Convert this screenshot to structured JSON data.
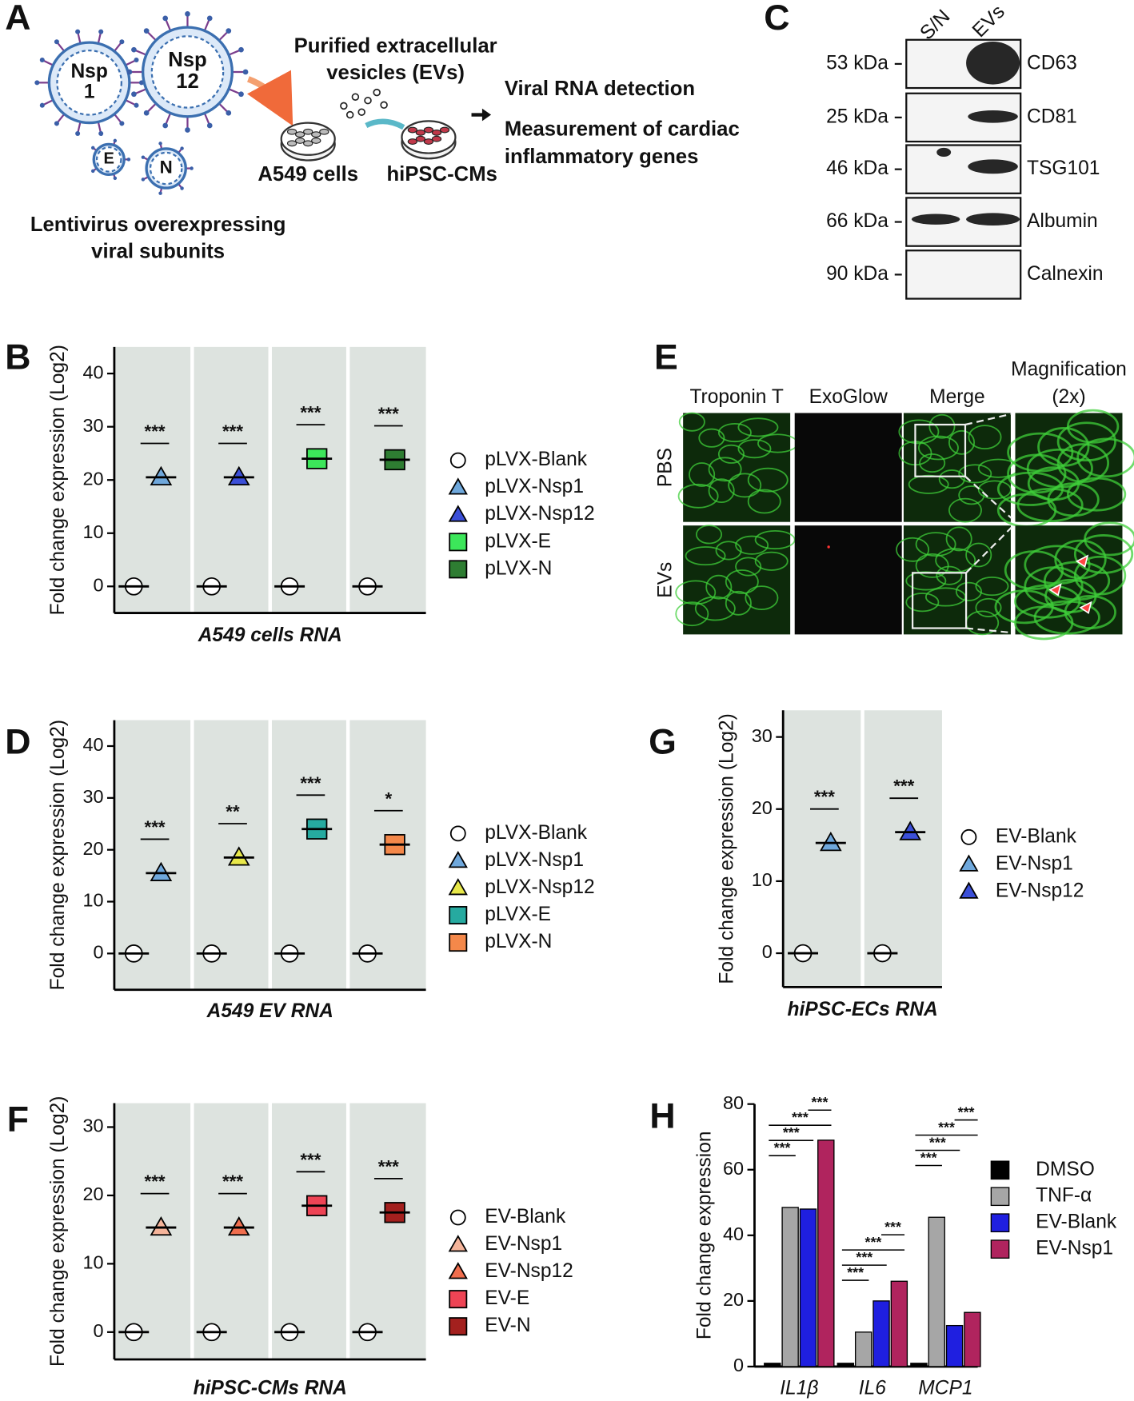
{
  "panel_labels": [
    "A",
    "B",
    "C",
    "D",
    "E",
    "F",
    "G",
    "H"
  ],
  "diagram": {
    "viruses": [
      [
        "Nsp",
        "1"
      ],
      [
        "Nsp",
        "12"
      ],
      [
        "E"
      ],
      [
        "N"
      ]
    ],
    "caption": [
      "Lentivirus overexpressing",
      "viral subunits"
    ],
    "ev_label": [
      "Purified extracellular",
      "vesicles (EVs)"
    ],
    "cells": [
      "A549 cells",
      "hiPSC-CMs"
    ],
    "outcomes": [
      "Viral RNA detection",
      "Measurement of cardiac",
      "inflammatory genes"
    ]
  },
  "blot": {
    "lanes": [
      "S/N",
      "EVs"
    ],
    "sizes": [
      "53 kDa",
      "25 kDa",
      "46 kDa",
      "66 kDa",
      "90 kDa"
    ],
    "proteins": [
      "CD63",
      "CD81",
      "TSG101",
      "Albumin",
      "Calnexin"
    ]
  },
  "micrographs": {
    "columns": [
      [
        "Troponin T"
      ],
      [
        "ExoGlow"
      ],
      [
        "Merge"
      ],
      [
        "Magnification",
        "(2x)"
      ]
    ],
    "rows": [
      "PBS",
      "EVs"
    ]
  },
  "chart_data": [
    {
      "type": "dotplot",
      "x_label": "A549 cells RNA",
      "y_label": "Fold change expression (Log2)",
      "ylim": [
        -5,
        45
      ],
      "yticks": [
        0,
        10,
        20,
        30,
        40
      ],
      "series": [
        {
          "name": "pLVX-Blank",
          "color": "#ffffff",
          "marker": "circle",
          "values": [
            0,
            0,
            0,
            0
          ]
        },
        {
          "name": "pLVX-Nsp1",
          "color": "#6fa8dc",
          "marker": "triangle",
          "values": [
            20.5,
            null,
            null,
            null
          ]
        },
        {
          "name": "pLVX-Nsp12",
          "color": "#3b4fd8",
          "marker": "triangle",
          "values": [
            null,
            20.5,
            null,
            null
          ]
        },
        {
          "name": "pLVX-E",
          "color": "#3ce65a",
          "marker": "square",
          "values": [
            null,
            null,
            24,
            null
          ]
        },
        {
          "name": "pLVX-N",
          "color": "#2e7d32",
          "marker": "square",
          "values": [
            null,
            null,
            null,
            23.8
          ]
        }
      ],
      "annotations": [
        "***",
        "***",
        "***",
        "***"
      ]
    },
    {
      "type": "dotplot",
      "x_label": "A549 EV RNA",
      "y_label": "Fold change expression (Log2)",
      "ylim": [
        -7,
        45
      ],
      "yticks": [
        0,
        10,
        20,
        30,
        40
      ],
      "series": [
        {
          "name": "pLVX-Blank",
          "color": "#ffffff",
          "marker": "circle",
          "values": [
            0,
            0,
            0,
            0
          ]
        },
        {
          "name": "pLVX-Nsp1",
          "color": "#6fa8dc",
          "marker": "triangle",
          "values": [
            15.5,
            null,
            null,
            null
          ]
        },
        {
          "name": "pLVX-Nsp12",
          "color": "#e8e84a",
          "marker": "triangle",
          "values": [
            null,
            18.5,
            null,
            null
          ]
        },
        {
          "name": "pLVX-E",
          "color": "#26aaa0",
          "marker": "square",
          "values": [
            null,
            null,
            24,
            null
          ]
        },
        {
          "name": "pLVX-N",
          "color": "#f4884a",
          "marker": "square",
          "values": [
            null,
            null,
            null,
            21
          ]
        }
      ],
      "annotations": [
        "***",
        "**",
        "***",
        "*"
      ]
    },
    {
      "type": "dotplot",
      "x_label": "hiPSC-CMs RNA",
      "y_label": "Fold change expression (Log2)",
      "ylim": [
        -4,
        33.5
      ],
      "yticks": [
        0,
        10,
        20,
        30
      ],
      "series": [
        {
          "name": "EV-Blank",
          "color": "#ffffff",
          "marker": "circle",
          "values": [
            0,
            0,
            0,
            0
          ]
        },
        {
          "name": "EV-Nsp1",
          "color": "#f5b49a",
          "marker": "triangle",
          "values": [
            15.3,
            null,
            null,
            null
          ]
        },
        {
          "name": "EV-Nsp12",
          "color": "#f06e4e",
          "marker": "triangle",
          "values": [
            null,
            15.3,
            null,
            null
          ]
        },
        {
          "name": "EV-E",
          "color": "#ee4455",
          "marker": "square",
          "values": [
            null,
            null,
            18.5,
            null
          ]
        },
        {
          "name": "EV-N",
          "color": "#a3201e",
          "marker": "square",
          "values": [
            null,
            null,
            null,
            17.5
          ]
        }
      ],
      "annotations": [
        "***",
        "***",
        "***",
        "***"
      ]
    },
    {
      "type": "dotplot",
      "x_label": "hiPSC-ECs RNA",
      "y_label": "Fold change expression (Log2)",
      "ylim": [
        -4.7,
        33.7
      ],
      "yticks": [
        0,
        10,
        20,
        30
      ],
      "series": [
        {
          "name": "EV-Blank",
          "color": "#ffffff",
          "marker": "circle",
          "values": [
            0,
            0
          ]
        },
        {
          "name": "EV-Nsp1",
          "color": "#6fa8dc",
          "marker": "triangle",
          "values": [
            15.3,
            null
          ]
        },
        {
          "name": "EV-Nsp12",
          "color": "#3b4fd8",
          "marker": "triangle",
          "values": [
            null,
            16.8
          ]
        }
      ],
      "annotations": [
        "***",
        "***"
      ]
    },
    {
      "type": "bar",
      "y_label": "Fold change expression",
      "categories": [
        "IL1β",
        "IL6",
        "MCP1"
      ],
      "ylim": [
        0,
        80
      ],
      "yticks": [
        0,
        20,
        40,
        60,
        80
      ],
      "series": [
        {
          "name": "DMSO",
          "color": "#000000",
          "values": [
            1,
            1,
            1
          ]
        },
        {
          "name": "TNF-α",
          "color": "#a6a6a6",
          "values": [
            48.5,
            10.5,
            45.5
          ]
        },
        {
          "name": "EV-Blank",
          "color": "#1f1fe0",
          "values": [
            48,
            20,
            12.5
          ]
        },
        {
          "name": "EV-Nsp1",
          "color": "#b0245e",
          "values": [
            69,
            26,
            16.5
          ]
        }
      ],
      "annotations": [
        [
          "***",
          "***",
          "***",
          "***"
        ],
        [
          "***",
          "***",
          "***",
          "***"
        ],
        [
          "***",
          "***",
          "***",
          "***"
        ]
      ]
    }
  ]
}
